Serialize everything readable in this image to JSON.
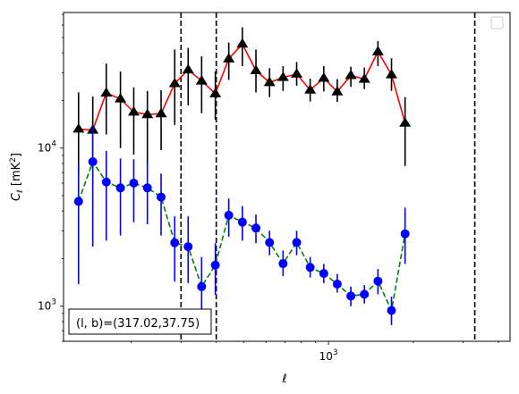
{
  "chart_data": {
    "type": "line",
    "x_scale": "log",
    "y_scale": "log",
    "xlim": [
      115,
      4400
    ],
    "ylim": [
      600,
      72000
    ],
    "xlabel_main": "ℓ",
    "ylabel_main": "C",
    "ylabel_sub": "ℓ",
    "ylabel_unit": "  [mK",
    "ylabel_sup": "2",
    "ylabel_end": "]",
    "x_ticks": [
      {
        "value": 1000,
        "base": "10",
        "exp": "3"
      }
    ],
    "y_ticks": [
      {
        "value": 1000,
        "base": "10",
        "exp": "3"
      },
      {
        "value": 10000,
        "base": "10",
        "exp": "4"
      }
    ],
    "vlines": [
      300,
      400,
      3300
    ],
    "annotation": "(l, b)=(317.02,37.75)",
    "legend": "top-right, empty",
    "grid": false,
    "series": [
      {
        "marker": "triangle",
        "line_color": "#ff0000",
        "line_style": "solid",
        "marker_color": "#000000",
        "errbar_color": "#000000",
        "points": [
          {
            "x": 130,
            "y": 13200,
            "lo": 6800,
            "hi": 22500
          },
          {
            "x": 146,
            "y": 13000,
            "lo": 7300,
            "hi": 21200
          },
          {
            "x": 163,
            "y": 22300,
            "lo": 12200,
            "hi": 34200
          },
          {
            "x": 183,
            "y": 20500,
            "lo": 10000,
            "hi": 30500
          },
          {
            "x": 204,
            "y": 16900,
            "lo": 9100,
            "hi": 24200
          },
          {
            "x": 228,
            "y": 16300,
            "lo": 7800,
            "hi": 23000
          },
          {
            "x": 255,
            "y": 16500,
            "lo": 9700,
            "hi": 23200
          },
          {
            "x": 285,
            "y": 25600,
            "lo": 14000,
            "hi": 42000
          },
          {
            "x": 318,
            "y": 31300,
            "lo": 18600,
            "hi": 43000
          },
          {
            "x": 355,
            "y": 26600,
            "lo": 16600,
            "hi": 38000
          },
          {
            "x": 397,
            "y": 22100,
            "lo": 15100,
            "hi": 30500
          },
          {
            "x": 443,
            "y": 36700,
            "lo": 27000,
            "hi": 46500
          },
          {
            "x": 495,
            "y": 45500,
            "lo": 33000,
            "hi": 58000
          },
          {
            "x": 553,
            "y": 30900,
            "lo": 22500,
            "hi": 42000
          },
          {
            "x": 618,
            "y": 26000,
            "lo": 21000,
            "hi": 32000
          },
          {
            "x": 690,
            "y": 28000,
            "lo": 23000,
            "hi": 33000
          },
          {
            "x": 771,
            "y": 29400,
            "lo": 24800,
            "hi": 35000
          },
          {
            "x": 861,
            "y": 23300,
            "lo": 19700,
            "hi": 27500
          },
          {
            "x": 962,
            "y": 27700,
            "lo": 22800,
            "hi": 33000
          },
          {
            "x": 1074,
            "y": 22700,
            "lo": 19600,
            "hi": 27300
          },
          {
            "x": 1200,
            "y": 28800,
            "lo": 24400,
            "hi": 32700
          },
          {
            "x": 1340,
            "y": 27300,
            "lo": 23600,
            "hi": 32300
          },
          {
            "x": 1497,
            "y": 40700,
            "lo": 33000,
            "hi": 47500
          },
          {
            "x": 1672,
            "y": 29100,
            "lo": 23000,
            "hi": 37000
          },
          {
            "x": 1868,
            "y": 14400,
            "lo": 7700,
            "hi": 21000
          }
        ]
      },
      {
        "marker": "circle",
        "line_color": "#008000",
        "line_style": "dashed",
        "marker_color": "#0000ff",
        "errbar_color": "#0000ff",
        "points": [
          {
            "x": 130,
            "y": 4600,
            "lo": 1380,
            "hi": 7900
          },
          {
            "x": 146,
            "y": 8200,
            "lo": 2380,
            "hi": 14000
          },
          {
            "x": 163,
            "y": 6100,
            "lo": 2600,
            "hi": 9600
          },
          {
            "x": 183,
            "y": 5600,
            "lo": 2800,
            "hi": 8600
          },
          {
            "x": 204,
            "y": 6000,
            "lo": 3400,
            "hi": 8500
          },
          {
            "x": 228,
            "y": 5600,
            "lo": 3300,
            "hi": 8000
          },
          {
            "x": 255,
            "y": 4900,
            "lo": 2800,
            "hi": 6900
          },
          {
            "x": 285,
            "y": 2520,
            "lo": 1430,
            "hi": 3700
          },
          {
            "x": 318,
            "y": 2380,
            "lo": 1400,
            "hi": 3700
          },
          {
            "x": 355,
            "y": 1330,
            "lo": 820,
            "hi": 2050
          },
          {
            "x": 397,
            "y": 1820,
            "lo": 1180,
            "hi": 2500
          },
          {
            "x": 443,
            "y": 3760,
            "lo": 2750,
            "hi": 4800
          },
          {
            "x": 495,
            "y": 3400,
            "lo": 2600,
            "hi": 4300
          },
          {
            "x": 553,
            "y": 3120,
            "lo": 2500,
            "hi": 3800
          },
          {
            "x": 618,
            "y": 2530,
            "lo": 2100,
            "hi": 3000
          },
          {
            "x": 690,
            "y": 1860,
            "lo": 1550,
            "hi": 2250
          },
          {
            "x": 771,
            "y": 2530,
            "lo": 2100,
            "hi": 3000
          },
          {
            "x": 861,
            "y": 1760,
            "lo": 1520,
            "hi": 2050
          },
          {
            "x": 962,
            "y": 1610,
            "lo": 1400,
            "hi": 1850
          },
          {
            "x": 1074,
            "y": 1380,
            "lo": 1220,
            "hi": 1600
          },
          {
            "x": 1200,
            "y": 1160,
            "lo": 1000,
            "hi": 1330
          },
          {
            "x": 1340,
            "y": 1190,
            "lo": 1040,
            "hi": 1360
          },
          {
            "x": 1497,
            "y": 1440,
            "lo": 1190,
            "hi": 1720
          },
          {
            "x": 1672,
            "y": 940,
            "lo": 760,
            "hi": 1150
          },
          {
            "x": 1868,
            "y": 2870,
            "lo": 1850,
            "hi": 4200
          }
        ]
      }
    ]
  }
}
